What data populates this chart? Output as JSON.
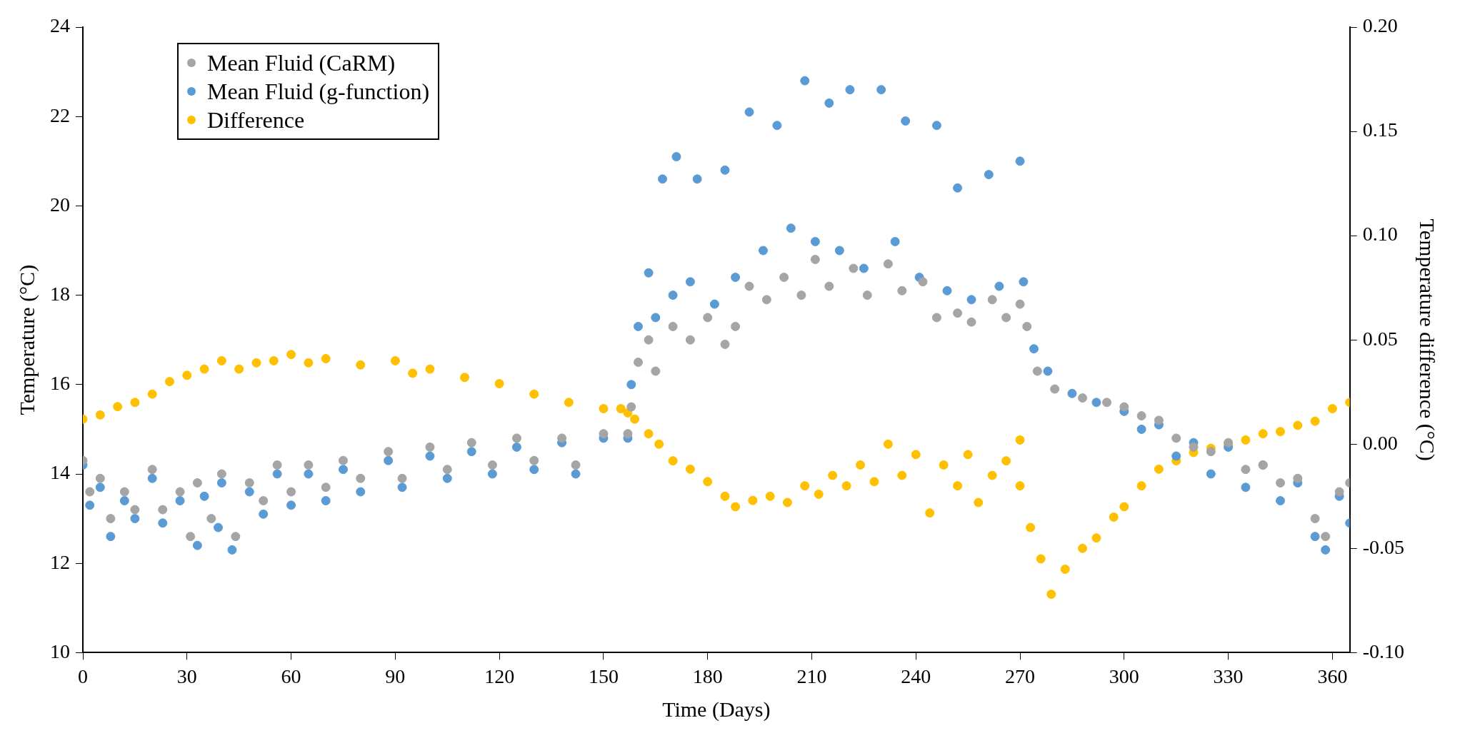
{
  "chart_data": {
    "type": "scatter",
    "xlabel": "Time (Days)",
    "ylabel": "Temperature (°C)",
    "y2label": "Temperature difference (°C)",
    "xlim": [
      0,
      365
    ],
    "xticks": [
      0,
      30,
      60,
      90,
      120,
      150,
      180,
      210,
      240,
      270,
      300,
      330,
      360
    ],
    "ylim": [
      10,
      24
    ],
    "yticks": [
      10,
      12,
      14,
      16,
      18,
      20,
      22,
      24
    ],
    "y2lim": [
      -0.1,
      0.2
    ],
    "y2ticks": [
      {
        "value": -0.1,
        "label": "-0.10"
      },
      {
        "value": -0.05,
        "label": "-0.05"
      },
      {
        "value": 0,
        "label": "0.00"
      },
      {
        "value": 0.05,
        "label": "0.05"
      },
      {
        "value": 0.1,
        "label": "0.10"
      },
      {
        "value": 0.15,
        "label": "0.15"
      },
      {
        "value": 0.2,
        "label": "0.20"
      }
    ],
    "grid": false,
    "legend": "top left",
    "marker": "circle",
    "series": [
      {
        "name": "Mean Fluid (CaRM)",
        "color": "#a5a5a5",
        "x": [
          0,
          2,
          5,
          8,
          12,
          15,
          20,
          23,
          28,
          31,
          33,
          37,
          40,
          44,
          48,
          52,
          56,
          60,
          65,
          70,
          75,
          80,
          88,
          92,
          100,
          105,
          112,
          118,
          125,
          130,
          138,
          142,
          150,
          157,
          158,
          160,
          163,
          165,
          170,
          175,
          180,
          185,
          188,
          192,
          197,
          202,
          207,
          211,
          215,
          222,
          226,
          232,
          236,
          242,
          246,
          252,
          256,
          262,
          266,
          270,
          272,
          275,
          280,
          288,
          295,
          300,
          305,
          310,
          315,
          320,
          325,
          330,
          335,
          340,
          345,
          350,
          355,
          358,
          362,
          365
        ],
        "values": [
          14.3,
          13.6,
          13.9,
          13.0,
          13.6,
          13.2,
          14.1,
          13.2,
          13.6,
          12.6,
          13.8,
          13.0,
          14.0,
          12.6,
          13.8,
          13.4,
          14.2,
          13.6,
          14.2,
          13.7,
          14.3,
          13.9,
          14.5,
          13.9,
          14.6,
          14.1,
          14.7,
          14.2,
          14.8,
          14.3,
          14.8,
          14.2,
          14.9,
          14.9,
          15.5,
          16.5,
          17.0,
          16.3,
          17.3,
          17.0,
          17.5,
          16.9,
          17.3,
          18.2,
          17.9,
          18.4,
          18.0,
          18.8,
          18.2,
          18.6,
          18.0,
          18.7,
          18.1,
          18.3,
          17.5,
          17.6,
          17.4,
          17.9,
          17.5,
          17.8,
          17.3,
          16.3,
          15.9,
          15.7,
          15.6,
          15.5,
          15.3,
          15.2,
          14.8,
          14.6,
          14.5,
          14.7,
          14.1,
          14.2,
          13.8,
          13.9,
          13.0,
          12.6,
          13.6,
          13.8
        ]
      },
      {
        "name": "Mean Fluid (g-function)",
        "color": "#5b9bd5",
        "x": [
          0,
          2,
          5,
          8,
          12,
          15,
          20,
          23,
          28,
          33,
          35,
          39,
          40,
          43,
          48,
          52,
          56,
          60,
          65,
          70,
          75,
          80,
          88,
          92,
          100,
          105,
          112,
          118,
          125,
          130,
          138,
          142,
          150,
          157,
          158,
          160,
          163,
          165,
          167,
          170,
          171,
          175,
          177,
          182,
          185,
          188,
          192,
          196,
          200,
          204,
          208,
          211,
          215,
          218,
          221,
          225,
          230,
          234,
          237,
          241,
          246,
          249,
          252,
          256,
          261,
          264,
          270,
          271,
          274,
          278,
          285,
          292,
          300,
          305,
          310,
          315,
          320,
          325,
          330,
          335,
          340,
          345,
          350,
          355,
          358,
          362,
          365
        ],
        "values": [
          14.2,
          13.3,
          13.7,
          12.6,
          13.4,
          13.0,
          13.9,
          12.9,
          13.4,
          12.4,
          13.5,
          12.8,
          13.8,
          12.3,
          13.6,
          13.1,
          14.0,
          13.3,
          14.0,
          13.4,
          14.1,
          13.6,
          14.3,
          13.7,
          14.4,
          13.9,
          14.5,
          14.0,
          14.6,
          14.1,
          14.7,
          14.0,
          14.8,
          14.8,
          16.0,
          17.3,
          18.5,
          17.5,
          20.6,
          18.0,
          21.1,
          18.3,
          20.6,
          17.8,
          20.8,
          18.4,
          22.1,
          19.0,
          21.8,
          19.5,
          22.8,
          19.2,
          22.3,
          19.0,
          22.6,
          18.6,
          22.6,
          19.2,
          21.9,
          18.4,
          21.8,
          18.1,
          20.4,
          17.9,
          20.7,
          18.2,
          21.0,
          18.3,
          16.8,
          16.3,
          15.8,
          15.6,
          15.4,
          15.0,
          15.1,
          14.4,
          14.7,
          14.0,
          14.6,
          13.7,
          14.2,
          13.4,
          13.8,
          12.6,
          12.3,
          13.5,
          12.9
        ]
      },
      {
        "name": "Difference",
        "color": "#ffc000",
        "axis": "y2",
        "x": [
          0,
          5,
          10,
          15,
          20,
          25,
          30,
          35,
          40,
          45,
          50,
          55,
          60,
          65,
          70,
          80,
          90,
          95,
          100,
          110,
          120,
          130,
          140,
          150,
          155,
          157,
          159,
          163,
          166,
          170,
          175,
          180,
          185,
          188,
          193,
          198,
          203,
          208,
          212,
          216,
          220,
          224,
          228,
          232,
          236,
          240,
          244,
          248,
          252,
          255,
          258,
          262,
          266,
          270,
          270,
          273,
          276,
          279,
          283,
          288,
          292,
          297,
          300,
          305,
          310,
          315,
          320,
          325,
          330,
          335,
          340,
          345,
          350,
          355,
          360,
          365
        ],
        "values": [
          0.012,
          0.014,
          0.018,
          0.02,
          0.024,
          0.03,
          0.033,
          0.036,
          0.04,
          0.036,
          0.039,
          0.04,
          0.043,
          0.039,
          0.041,
          0.038,
          0.04,
          0.034,
          0.036,
          0.032,
          0.029,
          0.024,
          0.02,
          0.017,
          0.017,
          0.015,
          0.012,
          0.005,
          0.0,
          -0.008,
          -0.012,
          -0.018,
          -0.025,
          -0.03,
          -0.027,
          -0.025,
          -0.028,
          -0.02,
          -0.024,
          -0.015,
          -0.02,
          -0.01,
          -0.018,
          0.0,
          -0.015,
          -0.005,
          -0.033,
          -0.01,
          -0.02,
          -0.005,
          -0.028,
          -0.015,
          -0.008,
          0.002,
          -0.02,
          -0.04,
          -0.055,
          -0.072,
          -0.06,
          -0.05,
          -0.045,
          -0.035,
          -0.03,
          -0.02,
          -0.012,
          -0.008,
          -0.004,
          -0.002,
          0.0,
          0.002,
          0.005,
          0.006,
          0.009,
          0.011,
          0.017,
          0.02
        ]
      }
    ]
  }
}
